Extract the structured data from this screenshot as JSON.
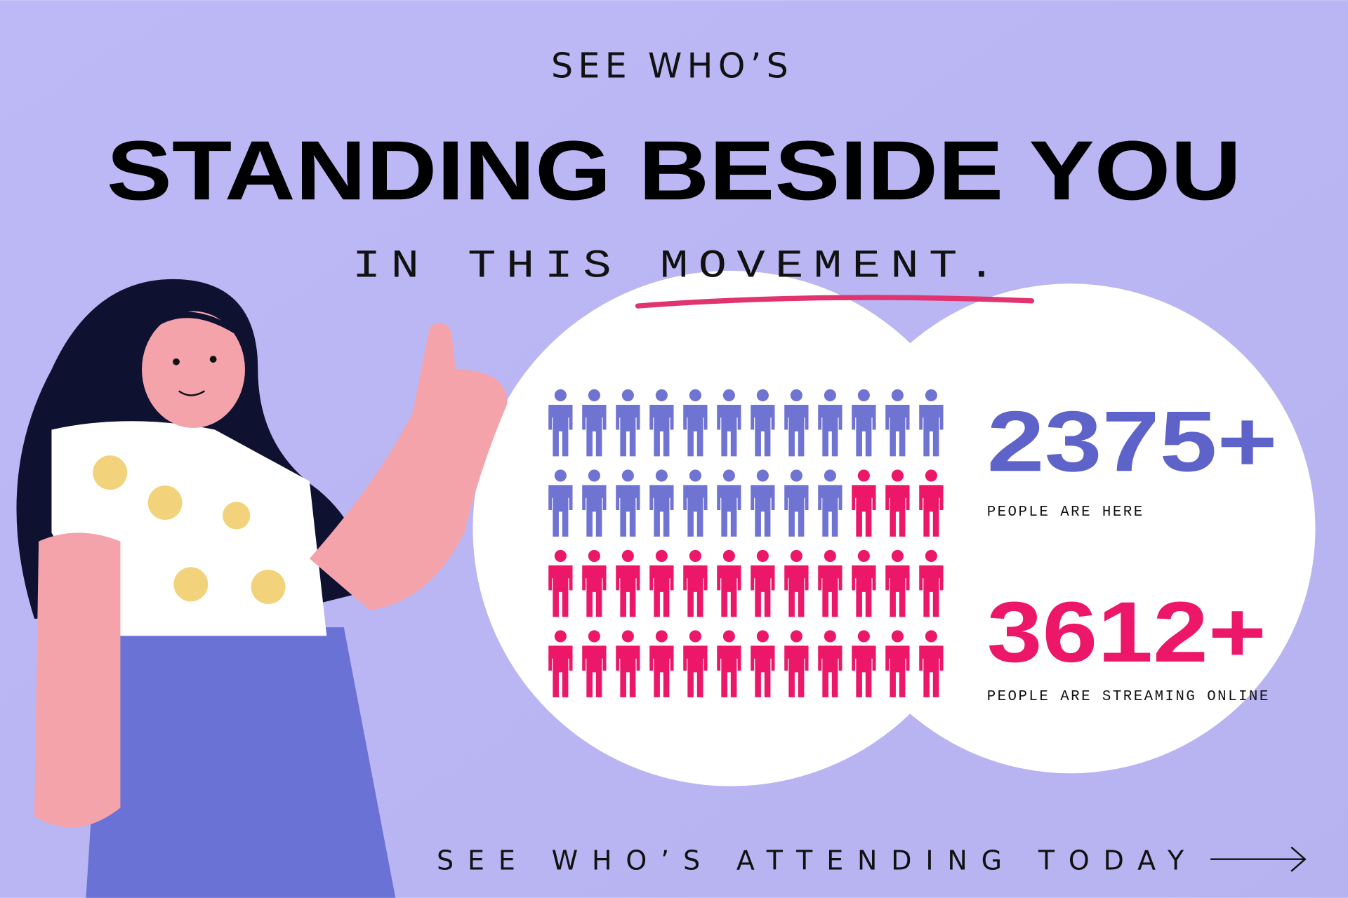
{
  "header": {
    "kicker": "SEE WHO’S",
    "title": "STANDING BESIDE YOU",
    "subtitle": "IN THIS MOVEMENT."
  },
  "stats": [
    {
      "value": "2375+",
      "label": "PEOPLE ARE HERE",
      "color": "#5e63c9"
    },
    {
      "value": "3612+",
      "label": "PEOPLE ARE STREAMING ONLINE",
      "color": "#ec1768"
    }
  ],
  "pictogram": {
    "columns": 12,
    "rows": 4,
    "groups": [
      {
        "count": 21,
        "color": "#6f73d2"
      },
      {
        "count": 27,
        "color": "#ec1768"
      }
    ]
  },
  "footer": {
    "link": "SEE WHO’S ATTENDING TODAY"
  }
}
